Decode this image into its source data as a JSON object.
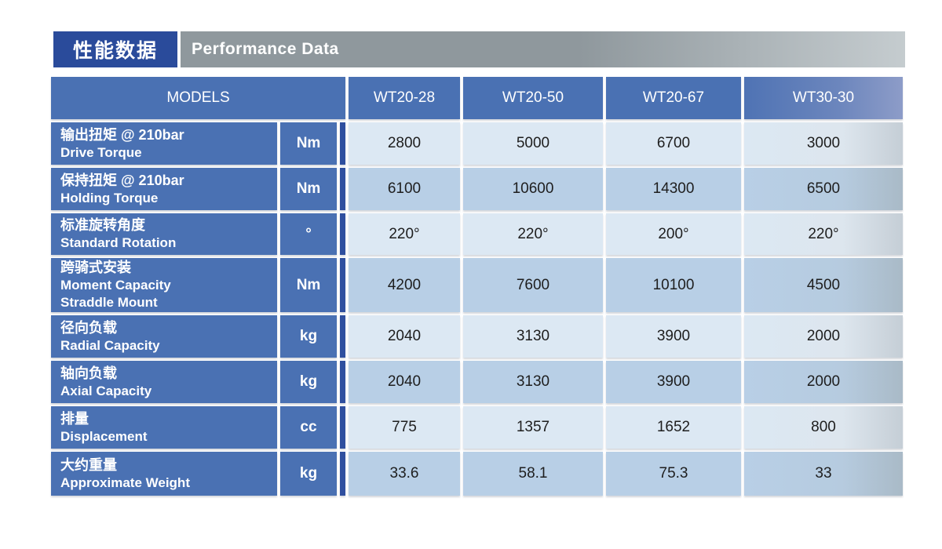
{
  "header": {
    "title_zh": "性能数据",
    "title_en": "Performance Data"
  },
  "colors": {
    "navy": "#2a4b9b",
    "cell_blue": "#4a71b3",
    "bar_gray": "#8f989d",
    "row_light": "#dce8f3",
    "row_mid": "#b8cfe6",
    "value_text": "#1e1e1e"
  },
  "table": {
    "models_header": "MODELS",
    "columns": [
      "WT20-28",
      "WT20-50",
      "WT20-67",
      "WT30-30"
    ],
    "rows": [
      {
        "label_lines": [
          "输出扭矩 @ 210bar",
          "Drive Torque"
        ],
        "unit": "Nm",
        "values": [
          "2800",
          "5000",
          "6700",
          "3000"
        ]
      },
      {
        "label_lines": [
          "保持扭矩 @ 210bar",
          "Holding Torque"
        ],
        "unit": "Nm",
        "values": [
          "6100",
          "10600",
          "14300",
          "6500"
        ]
      },
      {
        "label_lines": [
          "标准旋转角度",
          "Standard Rotation"
        ],
        "unit": "°",
        "values": [
          "220°",
          "220°",
          "200°",
          "220°"
        ]
      },
      {
        "label_lines": [
          "跨骑式安装",
          "Moment Capacity",
          "Straddle Mount"
        ],
        "unit": "Nm",
        "values": [
          "4200",
          "7600",
          "10100",
          "4500"
        ]
      },
      {
        "label_lines": [
          "径向负载",
          "Radial Capacity"
        ],
        "unit": "kg",
        "values": [
          "2040",
          "3130",
          "3900",
          "2000"
        ]
      },
      {
        "label_lines": [
          "轴向负载",
          "Axial Capacity"
        ],
        "unit": "kg",
        "values": [
          "2040",
          "3130",
          "3900",
          "2000"
        ]
      },
      {
        "label_lines": [
          "排量",
          "Displacement"
        ],
        "unit": "cc",
        "values": [
          "775",
          "1357",
          "1652",
          "800"
        ]
      },
      {
        "label_lines": [
          "大约重量",
          "Approximate Weight"
        ],
        "unit": "kg",
        "values": [
          "33.6",
          "58.1",
          "75.3",
          "33"
        ]
      }
    ]
  },
  "chart_data": {
    "type": "table",
    "title": "Performance Data 性能数据",
    "columns": [
      "WT20-28",
      "WT20-50",
      "WT20-67",
      "WT30-30"
    ],
    "rows": [
      {
        "metric": "Drive Torque @ 210bar",
        "unit": "Nm",
        "values": [
          2800,
          5000,
          6700,
          3000
        ]
      },
      {
        "metric": "Holding Torque @ 210bar",
        "unit": "Nm",
        "values": [
          6100,
          10600,
          14300,
          6500
        ]
      },
      {
        "metric": "Standard Rotation",
        "unit": "deg",
        "values": [
          220,
          220,
          200,
          220
        ]
      },
      {
        "metric": "Moment Capacity Straddle Mount",
        "unit": "Nm",
        "values": [
          4200,
          7600,
          10100,
          4500
        ]
      },
      {
        "metric": "Radial Capacity",
        "unit": "kg",
        "values": [
          2040,
          3130,
          3900,
          2000
        ]
      },
      {
        "metric": "Axial Capacity",
        "unit": "kg",
        "values": [
          2040,
          3130,
          3900,
          2000
        ]
      },
      {
        "metric": "Displacement",
        "unit": "cc",
        "values": [
          775,
          1357,
          1652,
          800
        ]
      },
      {
        "metric": "Approximate Weight",
        "unit": "kg",
        "values": [
          33.6,
          58.1,
          75.3,
          33
        ]
      }
    ]
  }
}
